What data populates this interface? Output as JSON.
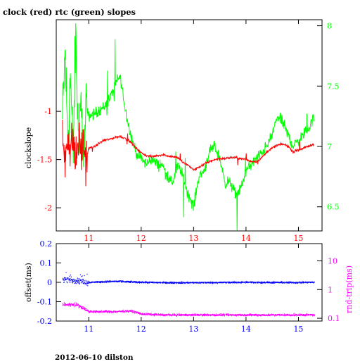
{
  "page": {
    "title": "clock (red) rtc (green) slopes",
    "footer": "2012-06-10 dilston"
  },
  "colors": {
    "background": "#ffffff",
    "axes": "#000000",
    "clock": "#ff0000",
    "rtc": "#00ff00",
    "offset": "#0000ff",
    "roundtrip": "#ff00ff"
  },
  "chart_data": [
    {
      "type": "line",
      "title": "clock (red) rtc (green) slopes",
      "ylabel": "clockslope",
      "x_ticks": [
        11,
        12,
        13,
        14,
        15
      ],
      "xlim": [
        10.38,
        15.45
      ],
      "ylim_left": [
        -2.24,
        -0.05
      ],
      "y_ticks_left": [
        -1,
        -1.5,
        -2
      ],
      "y_tick_labels_left": [
        "-1",
        "-1.5",
        "-2"
      ],
      "ylim_right": [
        6.3,
        8.05
      ],
      "y_ticks_right": [
        8,
        7.5,
        7,
        6.5
      ],
      "y_tick_labels_right": [
        "8",
        "7.5",
        "7",
        "6.5"
      ],
      "series": [
        {
          "name": "clock",
          "axis": "left",
          "color": "#ff0000",
          "x": [
            10.5,
            10.55,
            10.6,
            10.65,
            10.7,
            10.75,
            10.8,
            10.85,
            10.9,
            10.95,
            11.0,
            11.1,
            11.2,
            11.3,
            11.4,
            11.5,
            11.6,
            11.7,
            11.8,
            11.9,
            12.0,
            12.1,
            12.2,
            12.3,
            12.4,
            12.5,
            12.6,
            12.7,
            12.8,
            12.9,
            13.0,
            13.1,
            13.2,
            13.3,
            13.4,
            13.5,
            13.6,
            13.7,
            13.8,
            13.9,
            14.0,
            14.1,
            14.2,
            14.3,
            14.4,
            14.5,
            14.6,
            14.7,
            14.8,
            14.9,
            15.0,
            15.1,
            15.2,
            15.3
          ],
          "y": [
            -1.3,
            -1.5,
            -1.2,
            -1.45,
            -1.25,
            -1.55,
            -1.3,
            -1.4,
            -1.35,
            -1.5,
            -1.38,
            -1.37,
            -1.33,
            -1.3,
            -1.29,
            -1.27,
            -1.26,
            -1.28,
            -1.32,
            -1.38,
            -1.43,
            -1.46,
            -1.47,
            -1.46,
            -1.45,
            -1.46,
            -1.47,
            -1.48,
            -1.53,
            -1.56,
            -1.61,
            -1.58,
            -1.55,
            -1.52,
            -1.5,
            -1.49,
            -1.49,
            -1.48,
            -1.48,
            -1.49,
            -1.5,
            -1.52,
            -1.52,
            -1.48,
            -1.42,
            -1.38,
            -1.35,
            -1.34,
            -1.36,
            -1.42,
            -1.4,
            -1.38,
            -1.36,
            -1.34
          ]
        },
        {
          "name": "rtc",
          "axis": "right",
          "color": "#00ff00",
          "x": [
            10.5,
            10.55,
            10.6,
            10.65,
            10.7,
            10.75,
            10.8,
            10.85,
            10.9,
            10.95,
            11.0,
            11.1,
            11.2,
            11.3,
            11.4,
            11.5,
            11.55,
            11.6,
            11.7,
            11.8,
            11.9,
            12.0,
            12.1,
            12.2,
            12.3,
            12.4,
            12.5,
            12.6,
            12.7,
            12.8,
            12.9,
            13.0,
            13.1,
            13.2,
            13.3,
            13.4,
            13.5,
            13.6,
            13.7,
            13.8,
            13.9,
            14.0,
            14.1,
            14.2,
            14.3,
            14.4,
            14.5,
            14.6,
            14.7,
            14.8,
            14.9,
            15.0,
            15.1,
            15.2,
            15.3
          ],
          "y": [
            7.2,
            7.8,
            7.0,
            7.6,
            6.9,
            7.9,
            7.1,
            7.4,
            6.9,
            7.3,
            7.25,
            7.27,
            7.3,
            7.33,
            7.4,
            7.5,
            7.55,
            7.58,
            7.3,
            7.1,
            6.95,
            6.9,
            6.85,
            6.9,
            6.85,
            6.85,
            6.75,
            6.7,
            6.85,
            6.75,
            6.6,
            6.5,
            6.75,
            6.8,
            6.95,
            7.0,
            6.9,
            6.7,
            6.7,
            6.6,
            6.65,
            6.8,
            6.85,
            6.9,
            6.95,
            7.0,
            7.1,
            7.25,
            7.2,
            7.1,
            7.0,
            7.05,
            7.1,
            7.15,
            7.25
          ]
        }
      ]
    },
    {
      "type": "scatter",
      "ylabel": "offset(ms)",
      "ylabel_right": "rnd-trip(ms)",
      "x_ticks": [
        11,
        12,
        13,
        14,
        15
      ],
      "xlim": [
        10.38,
        15.45
      ],
      "ylim_left": [
        -0.2,
        0.2
      ],
      "y_ticks_left": [
        0.2,
        0.1,
        0,
        -0.1,
        -0.2
      ],
      "y_tick_labels_left": [
        "0.2",
        "0.1",
        "0",
        "-0.1",
        "-0.2"
      ],
      "right_scale": "log",
      "ylim_right": [
        0.08,
        40
      ],
      "y_ticks_right": [
        10,
        1,
        0.1
      ],
      "y_tick_labels_right": [
        "10",
        "1",
        "0.1"
      ],
      "series": [
        {
          "name": "offset",
          "axis": "left",
          "color": "#0000ff",
          "x": [
            10.5,
            10.75,
            11.0,
            11.5,
            12.0,
            12.5,
            13.0,
            13.5,
            14.0,
            14.5,
            15.0,
            15.3
          ],
          "y": [
            0.015,
            0.01,
            0.0,
            0.005,
            0.0,
            -0.002,
            -0.002,
            -0.001,
            0.0,
            -0.001,
            -0.001,
            0.0
          ]
        },
        {
          "name": "rnd-trip",
          "axis": "right",
          "color": "#ff00ff",
          "x": [
            10.5,
            10.75,
            11.0,
            11.5,
            11.8,
            12.0,
            12.5,
            13.0,
            13.5,
            14.0,
            14.5,
            15.0,
            15.3
          ],
          "y": [
            0.3,
            0.3,
            0.17,
            0.17,
            0.18,
            0.14,
            0.13,
            0.13,
            0.13,
            0.13,
            0.13,
            0.13,
            0.13
          ]
        }
      ]
    }
  ]
}
